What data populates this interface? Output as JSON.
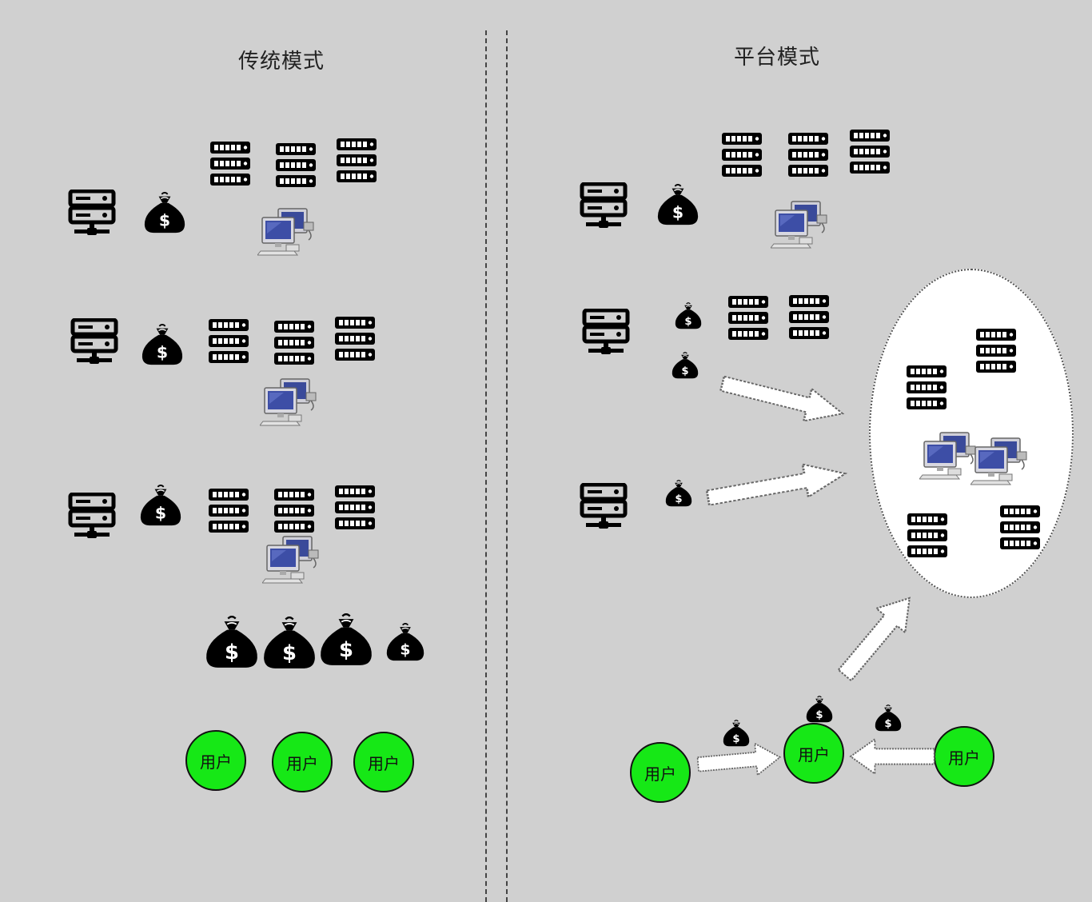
{
  "left_title": "传统模式",
  "right_title": "平台模式",
  "user_label": "用户",
  "colors": {
    "background": "#d0d0d0",
    "user_fill": "#16e816"
  },
  "icons": [
    "server-icon",
    "money-bag-icon",
    "server-rack-icon",
    "computers-icon",
    "arrow-icon"
  ]
}
